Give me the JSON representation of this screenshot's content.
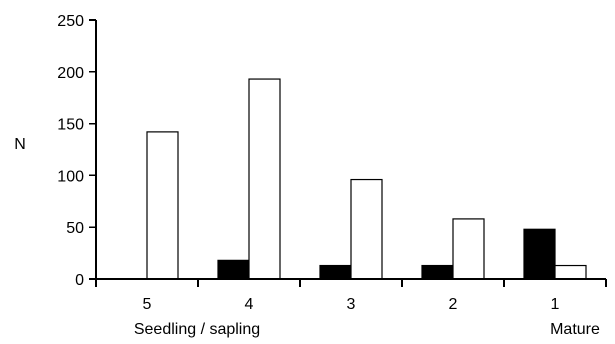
{
  "chart_data": {
    "type": "bar",
    "title": "",
    "xlabel": "",
    "ylabel": "N",
    "ylim": [
      0,
      250
    ],
    "yticks": [
      0,
      50,
      100,
      150,
      200,
      250
    ],
    "categories": [
      "5",
      "4",
      "3",
      "2",
      "1"
    ],
    "axis_annotations": {
      "left": "Seedling / sapling",
      "right": "Mature"
    },
    "series": [
      {
        "values": [
          0,
          18,
          13,
          13,
          48
        ],
        "color": "#000000",
        "style": "filled"
      },
      {
        "values": [
          142,
          193,
          96,
          58,
          13
        ],
        "color": "#ffffff",
        "style": "open"
      }
    ],
    "grid": false,
    "legend": "none"
  }
}
